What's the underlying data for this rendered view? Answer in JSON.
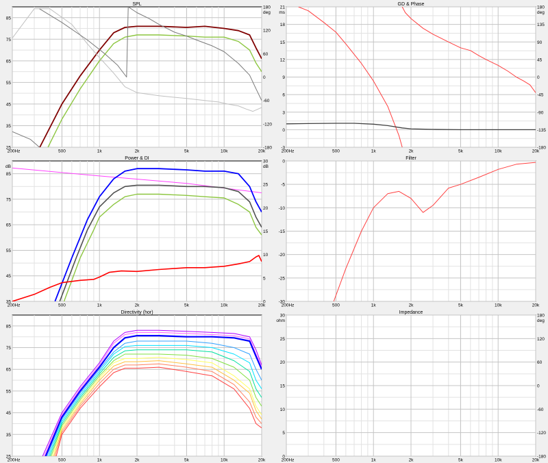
{
  "freq_ticks": [
    "200Hz",
    "500",
    "1k",
    "2k",
    "5k",
    "10k",
    "20k"
  ],
  "chart_data": [
    {
      "id": "spl",
      "type": "line",
      "title": "SPL",
      "xscale": "log",
      "xlim": [
        200,
        20000
      ],
      "ylim": [
        25,
        90
      ],
      "y_ticks": [
        25,
        35,
        45,
        55,
        65,
        75,
        85
      ],
      "y_unit": "",
      "y2lim": [
        -180,
        180
      ],
      "y2_ticks": [
        -180,
        -120,
        -60,
        0,
        60,
        120,
        180
      ],
      "y2_unit": "deg",
      "grid": true,
      "series": [
        {
          "color": "#800000",
          "width": 1.8,
          "axis": "left",
          "x": [
            300,
            500,
            700,
            1000,
            1300,
            1600,
            2000,
            3000,
            5000,
            7000,
            10000,
            13000,
            16000,
            18000,
            20000
          ],
          "y": [
            20,
            45,
            58,
            70,
            78,
            80.5,
            81,
            81,
            80.5,
            81,
            80,
            79,
            77,
            71,
            66
          ]
        },
        {
          "color": "#8cc63f",
          "width": 1.4,
          "axis": "left",
          "x": [
            350,
            500,
            700,
            1000,
            1300,
            1600,
            2000,
            3000,
            5000,
            7000,
            10000,
            13000,
            16000,
            18000,
            20000
          ],
          "y": [
            20,
            38,
            52,
            65,
            73,
            76,
            77,
            77,
            76.5,
            76,
            76,
            74,
            70,
            64,
            60
          ]
        },
        {
          "color": "#c0c0c0",
          "width": 1,
          "axis": "right",
          "x": [
            200,
            300,
            400,
            600,
            800,
            1000,
            1300,
            1600,
            2000,
            3000,
            5000,
            7000,
            9000,
            11000,
            13000,
            15000,
            17000,
            20000
          ],
          "y": [
            100,
            175,
            175,
            135,
            85,
            50,
            10,
            -25,
            -40,
            -48,
            -55,
            -60,
            -64,
            -70,
            -74,
            -82,
            -88,
            -78
          ]
        },
        {
          "color": "#7a7a7a",
          "width": 1,
          "axis": "right",
          "x": [
            200,
            280,
            330
          ],
          "y": [
            -140,
            -160,
            -180
          ]
        },
        {
          "color": "#7a7a7a",
          "width": 1,
          "axis": "right",
          "x": [
            330,
            500,
            800,
            1100,
            1400,
            1650,
            1700,
            2000,
            2500,
            3000,
            4000,
            5000,
            6000,
            8000,
            10000,
            13000,
            16000,
            18000,
            20000
          ],
          "y": [
            175,
            140,
            95,
            60,
            30,
            0,
            180,
            165,
            150,
            135,
            115,
            105,
            95,
            80,
            65,
            35,
            5,
            -30,
            -60
          ]
        }
      ]
    },
    {
      "id": "gd",
      "type": "line",
      "title": "GD & Phase",
      "xscale": "log",
      "xlim": [
        200,
        20000
      ],
      "ylim": [
        -3,
        21
      ],
      "y_ticks": [
        -3,
        0,
        3,
        6,
        9,
        12,
        15,
        18,
        21
      ],
      "y_unit": "ms",
      "y2lim": [
        -180,
        180
      ],
      "y2_ticks": [
        -180,
        -135,
        -90,
        -45,
        0,
        45,
        90,
        135,
        180
      ],
      "y2_unit": "deg",
      "grid": true,
      "series": [
        {
          "color": "#ff4040",
          "width": 1,
          "axis": "right",
          "x": [
            250,
            300,
            400,
            500,
            600,
            800,
            1000,
            1300,
            1600,
            1700
          ],
          "y": [
            180,
            170,
            140,
            115,
            85,
            35,
            -10,
            -75,
            -150,
            -180
          ]
        },
        {
          "color": "#ff4040",
          "width": 1,
          "axis": "right",
          "x": [
            1700,
            1800,
            2000,
            2500,
            3000,
            4000,
            5000,
            6000,
            7000,
            8000,
            10000,
            12000,
            14000,
            16000,
            18000,
            20000
          ],
          "y": [
            180,
            165,
            150,
            125,
            110,
            90,
            75,
            68,
            55,
            45,
            30,
            15,
            0,
            -10,
            -20,
            -40
          ]
        },
        {
          "color": "#404040",
          "width": 1.3,
          "axis": "left",
          "x": [
            200,
            300,
            500,
            700,
            1000,
            1300,
            1700,
            2000,
            3000,
            5000,
            10000,
            20000
          ],
          "y": [
            1,
            1.05,
            1.1,
            1.1,
            0.95,
            0.7,
            0.3,
            0.15,
            0.05,
            0,
            0,
            0
          ]
        }
      ]
    },
    {
      "id": "power",
      "type": "line",
      "title": "Power & DI",
      "xscale": "log",
      "xlim": [
        200,
        20000
      ],
      "ylim": [
        35,
        90
      ],
      "y_ticks": [
        35,
        45,
        55,
        65,
        75,
        85
      ],
      "y_unit": "dB",
      "y2lim": [
        0,
        30
      ],
      "y2_ticks": [
        0,
        5,
        10,
        15,
        20,
        25,
        30
      ],
      "y2_unit": "dB",
      "grid": true,
      "series": [
        {
          "color": "#ff40ff",
          "width": 1,
          "axis": "right",
          "x": [
            200,
            1000,
            5000,
            20000
          ],
          "y": [
            28.5,
            26.8,
            25.2,
            23.2
          ]
        },
        {
          "color": "#0000ff",
          "width": 1.8,
          "axis": "left",
          "x": [
            440,
            600,
            800,
            1000,
            1300,
            1600,
            2000,
            3000,
            5000,
            7000,
            10000,
            13000,
            16000,
            18000,
            20000
          ],
          "y": [
            35,
            52,
            67,
            76,
            83,
            86,
            87,
            87,
            86.5,
            86,
            86,
            85,
            80,
            74,
            70
          ]
        },
        {
          "color": "#505050",
          "width": 1.6,
          "axis": "left",
          "x": [
            480,
            650,
            800,
            1000,
            1300,
            1600,
            2000,
            3000,
            5000,
            7000,
            10000,
            13000,
            16000,
            18000,
            20000
          ],
          "y": [
            35,
            52,
            63,
            72,
            77.5,
            80,
            80.5,
            80.5,
            80,
            80,
            79.5,
            78,
            74,
            68,
            64
          ]
        },
        {
          "color": "#8cc63f",
          "width": 1.4,
          "axis": "left",
          "x": [
            520,
            700,
            900,
            1000,
            1300,
            1600,
            2000,
            3000,
            5000,
            7000,
            10000,
            13000,
            16000,
            18000,
            20000
          ],
          "y": [
            35,
            52,
            63,
            68,
            73,
            76,
            77,
            77,
            76.5,
            76,
            75.5,
            73,
            70,
            64,
            61
          ]
        },
        {
          "color": "#ff0000",
          "width": 1.6,
          "axis": "right",
          "x": [
            200,
            300,
            400,
            500,
            700,
            900,
            1000,
            1200,
            1500,
            2000,
            3000,
            5000,
            7000,
            10000,
            13000,
            16000,
            18000,
            19000,
            20000
          ],
          "y": [
            0,
            1.5,
            3,
            4,
            4.5,
            4.7,
            5.2,
            6.2,
            6.5,
            6.4,
            6.8,
            7.2,
            7.2,
            7.5,
            8,
            8.5,
            9.5,
            9.8,
            8.5
          ]
        }
      ]
    },
    {
      "id": "filter",
      "type": "line",
      "title": "Filter",
      "xscale": "log",
      "xlim": [
        200,
        20000
      ],
      "ylim": [
        -30,
        0
      ],
      "y_ticks": [
        -30,
        -25,
        -20,
        -15,
        -10,
        -5,
        0
      ],
      "y_unit": "",
      "grid": true,
      "series": [
        {
          "color": "#ff4040",
          "width": 1,
          "axis": "left",
          "x": [
            480,
            600,
            800,
            1000,
            1300,
            1600,
            2000,
            2500,
            3000,
            4000,
            5000,
            7000,
            10000,
            14000,
            20000
          ],
          "y": [
            -30,
            -23,
            -15,
            -10,
            -7,
            -6.5,
            -8,
            -11,
            -9.5,
            -5.8,
            -5,
            -3.5,
            -1.8,
            -0.7,
            -0.3
          ]
        }
      ]
    },
    {
      "id": "directivity",
      "type": "line",
      "title": "Directivity (hor)",
      "xscale": "log",
      "xlim": [
        200,
        20000
      ],
      "ylim": [
        25,
        90
      ],
      "y_ticks": [
        25,
        35,
        45,
        55,
        65,
        75,
        85
      ],
      "y_unit": "",
      "grid": true,
      "series": [
        {
          "color": "#b000ff",
          "width": 1,
          "axis": "left",
          "x": [
            350,
            500,
            700,
            1000,
            1300,
            1600,
            2000,
            3000,
            5000,
            8000,
            12000,
            16000,
            18000,
            20000
          ],
          "y": [
            25,
            45,
            57,
            68,
            78,
            82,
            83,
            83,
            82.5,
            82,
            81.5,
            80,
            74,
            67
          ]
        },
        {
          "color": "#ff60ff",
          "width": 1,
          "axis": "left",
          "x": [
            360,
            500,
            700,
            1000,
            1300,
            1600,
            2000,
            3000,
            5000,
            8000,
            12000,
            16000,
            18000,
            20000
          ],
          "y": [
            25,
            44,
            56,
            67,
            77,
            81,
            82,
            82,
            81.5,
            81,
            80.5,
            79,
            72,
            66
          ]
        },
        {
          "color": "#0000ff",
          "width": 2.2,
          "axis": "left",
          "x": [
            370,
            500,
            700,
            1000,
            1300,
            1600,
            2000,
            3000,
            5000,
            8000,
            12000,
            16000,
            18000,
            20000
          ],
          "y": [
            25,
            43,
            55,
            66,
            75,
            79.5,
            80.5,
            80.5,
            80,
            80,
            79.5,
            78,
            71,
            65
          ]
        },
        {
          "color": "#30a0ff",
          "width": 1,
          "axis": "left",
          "x": [
            380,
            500,
            700,
            1000,
            1300,
            1600,
            2000,
            3000,
            5000,
            8000,
            12000,
            16000,
            18000,
            20000
          ],
          "y": [
            25,
            42,
            54,
            65,
            73,
            77,
            78,
            78,
            78,
            77,
            75,
            72,
            65,
            60
          ]
        },
        {
          "color": "#00e0ff",
          "width": 1,
          "axis": "left",
          "x": [
            390,
            500,
            700,
            1000,
            1300,
            1600,
            2000,
            3000,
            5000,
            8000,
            12000,
            16000,
            18000,
            20000
          ],
          "y": [
            25,
            41,
            53,
            64,
            72,
            75.5,
            76,
            76,
            76,
            75,
            72,
            68,
            60,
            56
          ]
        },
        {
          "color": "#00e0a0",
          "width": 1,
          "axis": "left",
          "x": [
            400,
            500,
            700,
            1000,
            1300,
            1600,
            2000,
            3000,
            5000,
            8000,
            12000,
            16000,
            18000,
            20000
          ],
          "y": [
            25,
            40,
            52,
            63,
            70.5,
            73.5,
            74,
            74,
            74,
            73,
            69,
            64,
            56,
            52
          ]
        },
        {
          "color": "#80e040",
          "width": 1,
          "axis": "left",
          "x": [
            410,
            500,
            700,
            1000,
            1300,
            1600,
            2000,
            3000,
            5000,
            8000,
            12000,
            16000,
            18000,
            20000
          ],
          "y": [
            25,
            39,
            51,
            62,
            69,
            72,
            72,
            72,
            71.5,
            70,
            66,
            60,
            52,
            48
          ]
        },
        {
          "color": "#ffff60",
          "width": 1,
          "axis": "left",
          "x": [
            420,
            500,
            700,
            1000,
            1300,
            1600,
            2000,
            3000,
            5000,
            8000,
            12000,
            16000,
            18000,
            20000
          ],
          "y": [
            25,
            38,
            50,
            61,
            68,
            70,
            70,
            70.5,
            69.5,
            68,
            62,
            56,
            48,
            44
          ]
        },
        {
          "color": "#ffc040",
          "width": 1,
          "axis": "left",
          "x": [
            430,
            500,
            700,
            1000,
            1300,
            1600,
            2000,
            3000,
            5000,
            8000,
            12000,
            16000,
            18000,
            20000
          ],
          "y": [
            25,
            37,
            49,
            60,
            66.5,
            68.5,
            68.5,
            69,
            67.5,
            66,
            60,
            54,
            46,
            42
          ]
        },
        {
          "color": "#ff8060",
          "width": 1,
          "axis": "left",
          "x": [
            440,
            500,
            700,
            1000,
            1300,
            1600,
            2000,
            3000,
            5000,
            8000,
            12000,
            16000,
            18000,
            20000
          ],
          "y": [
            25,
            36,
            48,
            58.5,
            65,
            67,
            67,
            67.5,
            66,
            64,
            58,
            50,
            43,
            40
          ]
        },
        {
          "color": "#ff4040",
          "width": 1,
          "axis": "left",
          "x": [
            450,
            500,
            700,
            1000,
            1300,
            1600,
            2000,
            3000,
            5000,
            8000,
            12000,
            16000,
            18000,
            20000
          ],
          "y": [
            25,
            35,
            47,
            57,
            63.5,
            65.5,
            65.5,
            66,
            64,
            62,
            56,
            47,
            40,
            38
          ]
        }
      ]
    },
    {
      "id": "impedance",
      "type": "line",
      "title": "Impedance",
      "xscale": "log",
      "xlim": [
        200,
        20000
      ],
      "ylim": [
        0,
        30
      ],
      "y_ticks": [
        0,
        5,
        10,
        15,
        20,
        25,
        30
      ],
      "y_unit": "ohm",
      "y2lim": [
        -180,
        180
      ],
      "y2_ticks": [
        -180,
        -120,
        -60,
        0,
        60,
        120,
        180
      ],
      "y2_unit": "deg",
      "grid": true,
      "series": []
    }
  ]
}
